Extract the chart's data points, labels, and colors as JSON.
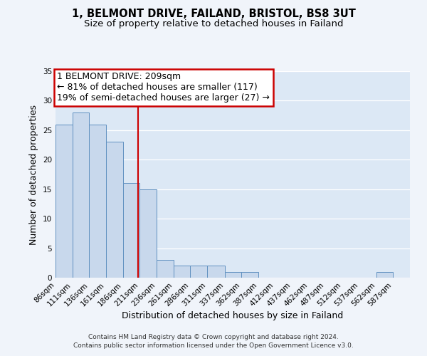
{
  "title": "1, BELMONT DRIVE, FAILAND, BRISTOL, BS8 3UT",
  "subtitle": "Size of property relative to detached houses in Failand",
  "xlabel": "Distribution of detached houses by size in Failand",
  "ylabel": "Number of detached properties",
  "bin_edges": [
    86,
    111,
    136,
    161,
    186,
    211,
    236,
    261,
    286,
    311,
    337,
    362,
    387,
    412,
    437,
    462,
    487,
    512,
    537,
    562,
    587,
    612
  ],
  "bin_labels": [
    "86sqm",
    "111sqm",
    "136sqm",
    "161sqm",
    "186sqm",
    "211sqm",
    "236sqm",
    "261sqm",
    "286sqm",
    "311sqm",
    "337sqm",
    "362sqm",
    "387sqm",
    "412sqm",
    "437sqm",
    "462sqm",
    "487sqm",
    "512sqm",
    "537sqm",
    "562sqm",
    "587sqm"
  ],
  "counts": [
    26,
    28,
    26,
    23,
    16,
    15,
    3,
    2,
    2,
    2,
    1,
    1,
    0,
    0,
    0,
    0,
    0,
    0,
    0,
    1,
    0
  ],
  "bar_color": "#c8d8ec",
  "bar_edge_color": "#6090c0",
  "reference_line_x": 209,
  "reference_line_color": "#cc0000",
  "annotation_line1": "1 BELMONT DRIVE: 209sqm",
  "annotation_line2": "← 81% of detached houses are smaller (117)",
  "annotation_line3": "19% of semi-detached houses are larger (27) →",
  "annotation_box_color": "#ffffff",
  "annotation_box_edge_color": "#cc0000",
  "ylim": [
    0,
    35
  ],
  "yticks": [
    0,
    5,
    10,
    15,
    20,
    25,
    30,
    35
  ],
  "plot_bg_color": "#dce8f5",
  "fig_bg_color": "#f0f4fa",
  "grid_color": "#ffffff",
  "footer_line1": "Contains HM Land Registry data © Crown copyright and database right 2024.",
  "footer_line2": "Contains public sector information licensed under the Open Government Licence v3.0.",
  "title_fontsize": 10.5,
  "subtitle_fontsize": 9.5,
  "axis_label_fontsize": 9,
  "tick_fontsize": 7.5,
  "annotation_fontsize": 9,
  "footer_fontsize": 6.5
}
